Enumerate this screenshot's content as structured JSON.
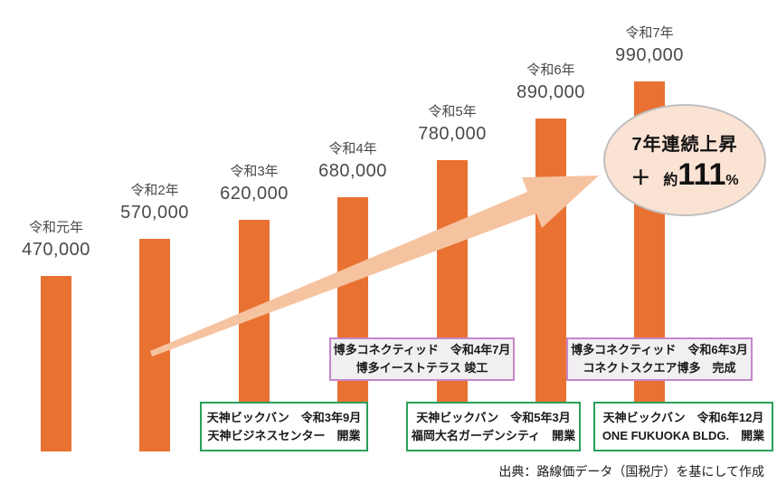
{
  "chart_data": {
    "type": "bar",
    "title": "",
    "categories": [
      "令和元年",
      "令和2年",
      "令和3年",
      "令和4年",
      "令和5年",
      "令和6年",
      "令和7年"
    ],
    "values": [
      470000,
      570000,
      620000,
      680000,
      780000,
      890000,
      990000
    ],
    "value_labels": [
      "470,000",
      "570,000",
      "620,000",
      "680,000",
      "780,000",
      "890,000",
      "990,000"
    ],
    "bar_color": "#E97132",
    "label_color": "#4a4a4a",
    "xlabel": "",
    "ylabel": "",
    "ylim": [
      0,
      1100000
    ],
    "grid": false,
    "legend": "none"
  },
  "arrow": {
    "color": "#F6C3A0"
  },
  "callout": {
    "line1": "7年連続上昇",
    "plus": "＋",
    "approx": "約",
    "value": "111",
    "percent": "%",
    "fill_color": "#FBE3D4",
    "border_color": "#BFBFBF"
  },
  "annotations": {
    "purple_border_color": "#C586C9",
    "purple_fill_color": "#F1EFF1",
    "green_border_color": "#2BA05A",
    "green_fill_color": "#FFFFFF",
    "purple": [
      {
        "line1": "博多コネクティッド　令和4年7月",
        "line2": "博多イーストテラス 竣工"
      },
      {
        "line1": "博多コネクティッド　令和6年3月",
        "line2": "コネクトスクエア博多　完成"
      }
    ],
    "green": [
      {
        "line1": "天神ビックバン　令和3年9月",
        "line2": "天神ビジネスセンター　開業"
      },
      {
        "line1": "天神ビックバン　令和5年3月",
        "line2": "福岡大名ガーデンシティ　開業"
      },
      {
        "line1": "天神ビックバン　令和6年12月",
        "line2": "ONE FUKUOKA BLDG.　開業"
      }
    ]
  },
  "source": "出典：路線価データ（国税庁）を基にして作成"
}
